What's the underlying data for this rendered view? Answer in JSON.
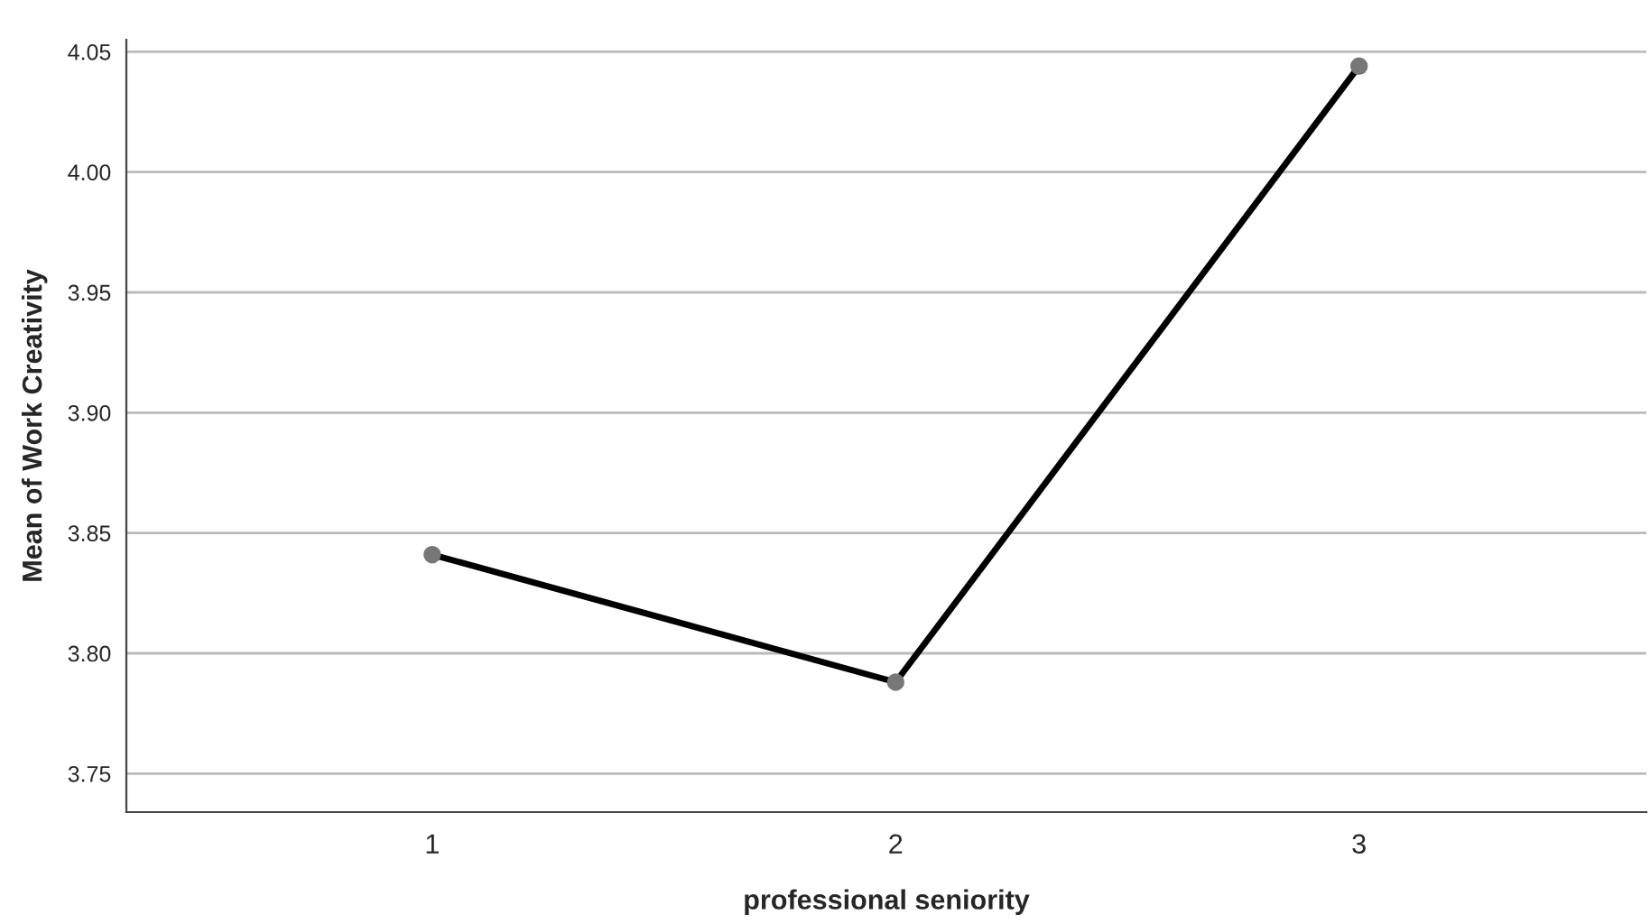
{
  "chart_data": {
    "type": "line",
    "xlabel": "professional seniority",
    "ylabel": "Mean of Work Creativity",
    "categories": [
      "1",
      "2",
      "3"
    ],
    "series": [
      {
        "color": "#000000",
        "values": [
          3.841,
          3.788,
          4.044
        ]
      }
    ],
    "ylim": [
      3.734,
      4.055
    ],
    "yticks": [
      3.75,
      {
        "value": 3.8,
        "label": "3.80"
      },
      3.85,
      {
        "value": 3.9,
        "label": "3.90"
      },
      3.95,
      {
        "value": 4.0,
        "label": "4.00"
      },
      4.05
    ],
    "grid": "y",
    "marker": "circle",
    "line_style": "solid"
  }
}
